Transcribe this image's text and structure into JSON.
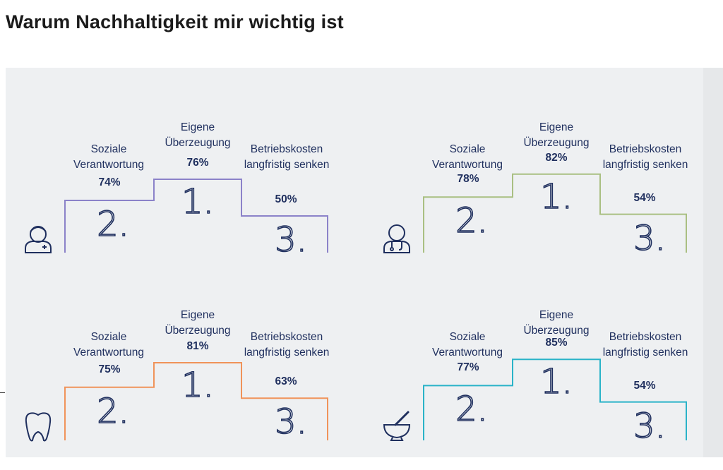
{
  "title": "Warum Nachhaltigkeit mir wichtig ist",
  "labels": {
    "left": "Soziale Verantwortung",
    "middle": "Eigene Überzeugung",
    "right": "Betriebskosten langfristig senken"
  },
  "ranks": {
    "first": "1.",
    "second": "2.",
    "third": "3."
  },
  "chart_data": [
    {
      "type": "bar",
      "icon": "nurse-icon",
      "color": "#8b82c9",
      "categories": [
        "Soziale Verantwortung",
        "Eigene Überzeugung",
        "Betriebskosten langfristig senken"
      ],
      "values": [
        74,
        76,
        50
      ],
      "display": [
        "74%",
        "76%",
        "50%"
      ]
    },
    {
      "type": "bar",
      "icon": "doctor-icon",
      "color": "#a9bf82",
      "categories": [
        "Soziale Verantwortung",
        "Eigene Überzeugung",
        "Betriebskosten langfristig senken"
      ],
      "values": [
        78,
        82,
        54
      ],
      "display": [
        "78%",
        "82%",
        "54%"
      ]
    },
    {
      "type": "bar",
      "icon": "tooth-icon",
      "color": "#f0935a",
      "categories": [
        "Soziale Verantwortung",
        "Eigene Überzeugung",
        "Betriebskosten langfristig senken"
      ],
      "values": [
        75,
        81,
        63
      ],
      "display": [
        "75%",
        "81%",
        "63%"
      ]
    },
    {
      "type": "bar",
      "icon": "mortar-pestle-icon",
      "color": "#29b3c8",
      "categories": [
        "Soziale Verantwortung",
        "Eigene Überzeugung",
        "Betriebskosten langfristig senken"
      ],
      "values": [
        77,
        85,
        54
      ],
      "display": [
        "77%",
        "85%",
        "54%"
      ]
    }
  ]
}
